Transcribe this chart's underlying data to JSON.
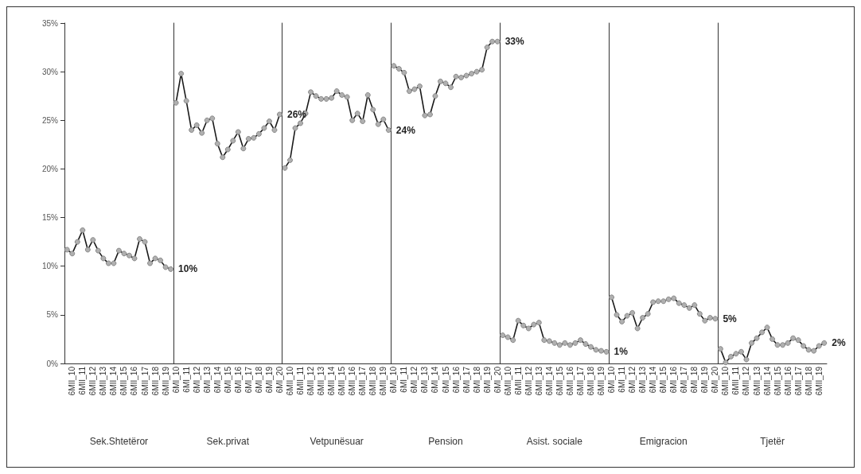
{
  "chart_data": [
    {
      "type": "line",
      "xlabel": "Sek.Shtetëror",
      "categories": [
        null,
        "6MII_10",
        null,
        "6MII_11",
        null,
        "6MII_12",
        null,
        "6MII_13",
        null,
        "6MII_14",
        null,
        "6MII_15",
        null,
        "6MII_16",
        null,
        "6MII_17",
        null,
        "6MII_18",
        null,
        "6MII_19",
        null
      ],
      "series": [
        {
          "color": "#1a1a1a",
          "values": [
            11.7,
            11.3,
            12.5,
            13.7,
            11.7,
            12.7,
            11.6,
            10.8,
            10.3,
            10.3,
            11.6,
            11.3,
            11.1,
            10.8,
            12.8,
            12.5,
            10.3,
            10.8,
            10.6,
            9.9,
            9.7
          ],
          "value_labels": [
            null,
            null,
            null,
            null,
            null,
            null,
            null,
            null,
            null,
            null,
            null,
            null,
            null,
            null,
            null,
            null,
            null,
            null,
            null,
            null,
            "10%"
          ]
        }
      ],
      "ylim": [
        0,
        35
      ],
      "yticks": [
        {
          "value": 0,
          "label": "0%"
        },
        {
          "value": 5,
          "label": "5%"
        },
        {
          "value": 10,
          "label": "10%"
        },
        {
          "value": 15,
          "label": "15%"
        },
        {
          "value": 20,
          "label": "20%"
        },
        {
          "value": 25,
          "label": "25%"
        },
        {
          "value": 30,
          "label": "30%"
        },
        {
          "value": 35,
          "label": "35%"
        }
      ],
      "marker": "circle",
      "line_style": "solid"
    },
    {
      "type": "line",
      "xlabel": "Sek.privat",
      "categories": [
        "6MI_10",
        null,
        "6MI_11",
        null,
        "6MI_12",
        null,
        "6MI_13",
        null,
        "6MI_14",
        null,
        "6MI_15",
        null,
        "6MI_16",
        null,
        "6MI_17",
        null,
        "6MI_18",
        null,
        "6MI_19",
        null,
        "6MI_20"
      ],
      "series": [
        {
          "color": "#1a1a1a",
          "values": [
            26.8,
            29.8,
            27.0,
            24.0,
            24.5,
            23.7,
            25.0,
            25.2,
            22.6,
            21.2,
            22.0,
            22.9,
            23.8,
            22.1,
            23.1,
            23.2,
            23.6,
            24.2,
            24.9,
            24.0,
            25.6
          ],
          "value_labels": [
            null,
            null,
            null,
            null,
            null,
            null,
            null,
            null,
            null,
            null,
            null,
            null,
            null,
            null,
            null,
            null,
            null,
            null,
            null,
            null,
            "26%"
          ]
        }
      ],
      "ylim": [
        0,
        35
      ],
      "tick_labels": "x",
      "marker": "circle",
      "line_style": "solid"
    },
    {
      "type": "line",
      "xlabel": "Vetpunësuar",
      "categories": [
        null,
        "6MII_10",
        null,
        "6MII_11",
        null,
        "6MII_12",
        null,
        "6MII_13",
        null,
        "6MII_14",
        null,
        "6MII_15",
        null,
        "6MII_16",
        null,
        "6MII_17",
        null,
        "6MII_18",
        null,
        "6MII_19",
        null
      ],
      "series": [
        {
          "color": "#1a1a1a",
          "values": [
            20.1,
            20.9,
            24.2,
            24.7,
            25.7,
            27.9,
            27.5,
            27.2,
            27.2,
            27.3,
            28.0,
            27.6,
            27.4,
            25.0,
            25.7,
            24.9,
            27.6,
            26.1,
            24.6,
            25.1,
            24.0
          ],
          "value_labels": [
            null,
            null,
            null,
            null,
            null,
            null,
            null,
            null,
            null,
            null,
            null,
            null,
            null,
            null,
            null,
            null,
            null,
            null,
            null,
            null,
            "24%"
          ]
        }
      ],
      "ylim": [
        0,
        35
      ],
      "tick_labels": "x",
      "marker": "circle",
      "line_style": "solid"
    },
    {
      "type": "line",
      "xlabel": "Pension",
      "categories": [
        "6MI_10",
        null,
        "6MI_11",
        null,
        "6MI_12",
        null,
        "6MI_13",
        null,
        "6MI_14",
        null,
        "6MI_15",
        null,
        "6MI_16",
        null,
        "6MI_17",
        null,
        "6MI_18",
        null,
        "6MI_19",
        null,
        "6MI_20"
      ],
      "series": [
        {
          "color": "#1a1a1a",
          "values": [
            30.6,
            30.3,
            29.9,
            28.0,
            28.2,
            28.5,
            25.5,
            25.6,
            27.5,
            29.0,
            28.8,
            28.4,
            29.5,
            29.4,
            29.6,
            29.8,
            30.0,
            30.2,
            32.5,
            33.1,
            33.1
          ],
          "value_labels": [
            null,
            null,
            null,
            null,
            null,
            null,
            null,
            null,
            null,
            null,
            null,
            null,
            null,
            null,
            null,
            null,
            null,
            null,
            null,
            null,
            "33%"
          ]
        }
      ],
      "ylim": [
        0,
        35
      ],
      "tick_labels": "x",
      "marker": "circle",
      "line_style": "solid"
    },
    {
      "type": "line",
      "xlabel": "Asist. sociale",
      "categories": [
        null,
        "6MII_10",
        null,
        "6MII_11",
        null,
        "6MII_12",
        null,
        "6MII_13",
        null,
        "6MII_14",
        null,
        "6MII_15",
        null,
        "6MII_16",
        null,
        "6MII_17",
        null,
        "6MII_18",
        null,
        "6MII_19",
        null
      ],
      "series": [
        {
          "color": "#1a1a1a",
          "values": [
            2.9,
            2.7,
            2.4,
            4.4,
            3.9,
            3.6,
            4.0,
            4.2,
            2.4,
            2.3,
            2.1,
            1.9,
            2.1,
            1.9,
            2.1,
            2.4,
            2.0,
            1.7,
            1.4,
            1.3,
            1.2
          ],
          "value_labels": [
            null,
            null,
            null,
            null,
            null,
            null,
            null,
            null,
            null,
            null,
            null,
            null,
            null,
            null,
            null,
            null,
            null,
            null,
            null,
            null,
            "1%"
          ]
        }
      ],
      "ylim": [
        0,
        35
      ],
      "tick_labels": "x",
      "marker": "circle",
      "line_style": "solid"
    },
    {
      "type": "line",
      "xlabel": "Emigracion",
      "categories": [
        "6MI_10",
        null,
        "6MI_11",
        null,
        "6MI_12",
        null,
        "6MI_13",
        null,
        "6MI_14",
        null,
        "6MI_15",
        null,
        "6MI_16",
        null,
        "6MI_17",
        null,
        "6MI_18",
        null,
        "6MI_19",
        null,
        "6MI_20"
      ],
      "series": [
        {
          "color": "#1a1a1a",
          "values": [
            6.8,
            5.0,
            4.3,
            4.9,
            5.2,
            3.6,
            4.7,
            5.1,
            6.3,
            6.4,
            6.4,
            6.6,
            6.7,
            6.2,
            6.0,
            5.7,
            6.0,
            5.1,
            4.4,
            4.7,
            4.6
          ],
          "value_labels": [
            null,
            null,
            null,
            null,
            null,
            null,
            null,
            null,
            null,
            null,
            null,
            null,
            null,
            null,
            null,
            null,
            null,
            null,
            null,
            null,
            "5%"
          ]
        }
      ],
      "ylim": [
        0,
        35
      ],
      "tick_labels": "x",
      "marker": "circle",
      "line_style": "solid"
    },
    {
      "type": "line",
      "xlabel": "Tjetër",
      "categories": [
        null,
        "6MII_10",
        null,
        "6MII_11",
        null,
        "6MII_12",
        null,
        "6MII_13",
        null,
        "6MII_14",
        null,
        "6MII_15",
        null,
        "6MII_16",
        null,
        "6MII_17",
        null,
        "6MII_18",
        null,
        "6MII_19",
        null
      ],
      "series": [
        {
          "color": "#1a1a1a",
          "values": [
            1.5,
            0.1,
            0.7,
            1.0,
            1.2,
            0.4,
            2.1,
            2.6,
            3.2,
            3.7,
            2.5,
            1.9,
            1.9,
            2.1,
            2.6,
            2.4,
            1.8,
            1.4,
            1.3,
            1.8,
            2.1
          ],
          "value_labels": [
            null,
            null,
            null,
            null,
            null,
            null,
            null,
            null,
            null,
            null,
            null,
            null,
            null,
            null,
            null,
            null,
            null,
            null,
            null,
            null,
            "2%"
          ]
        }
      ],
      "ylim": [
        0,
        35
      ],
      "tick_labels": "x",
      "marker": "circle",
      "line_style": "solid"
    }
  ]
}
